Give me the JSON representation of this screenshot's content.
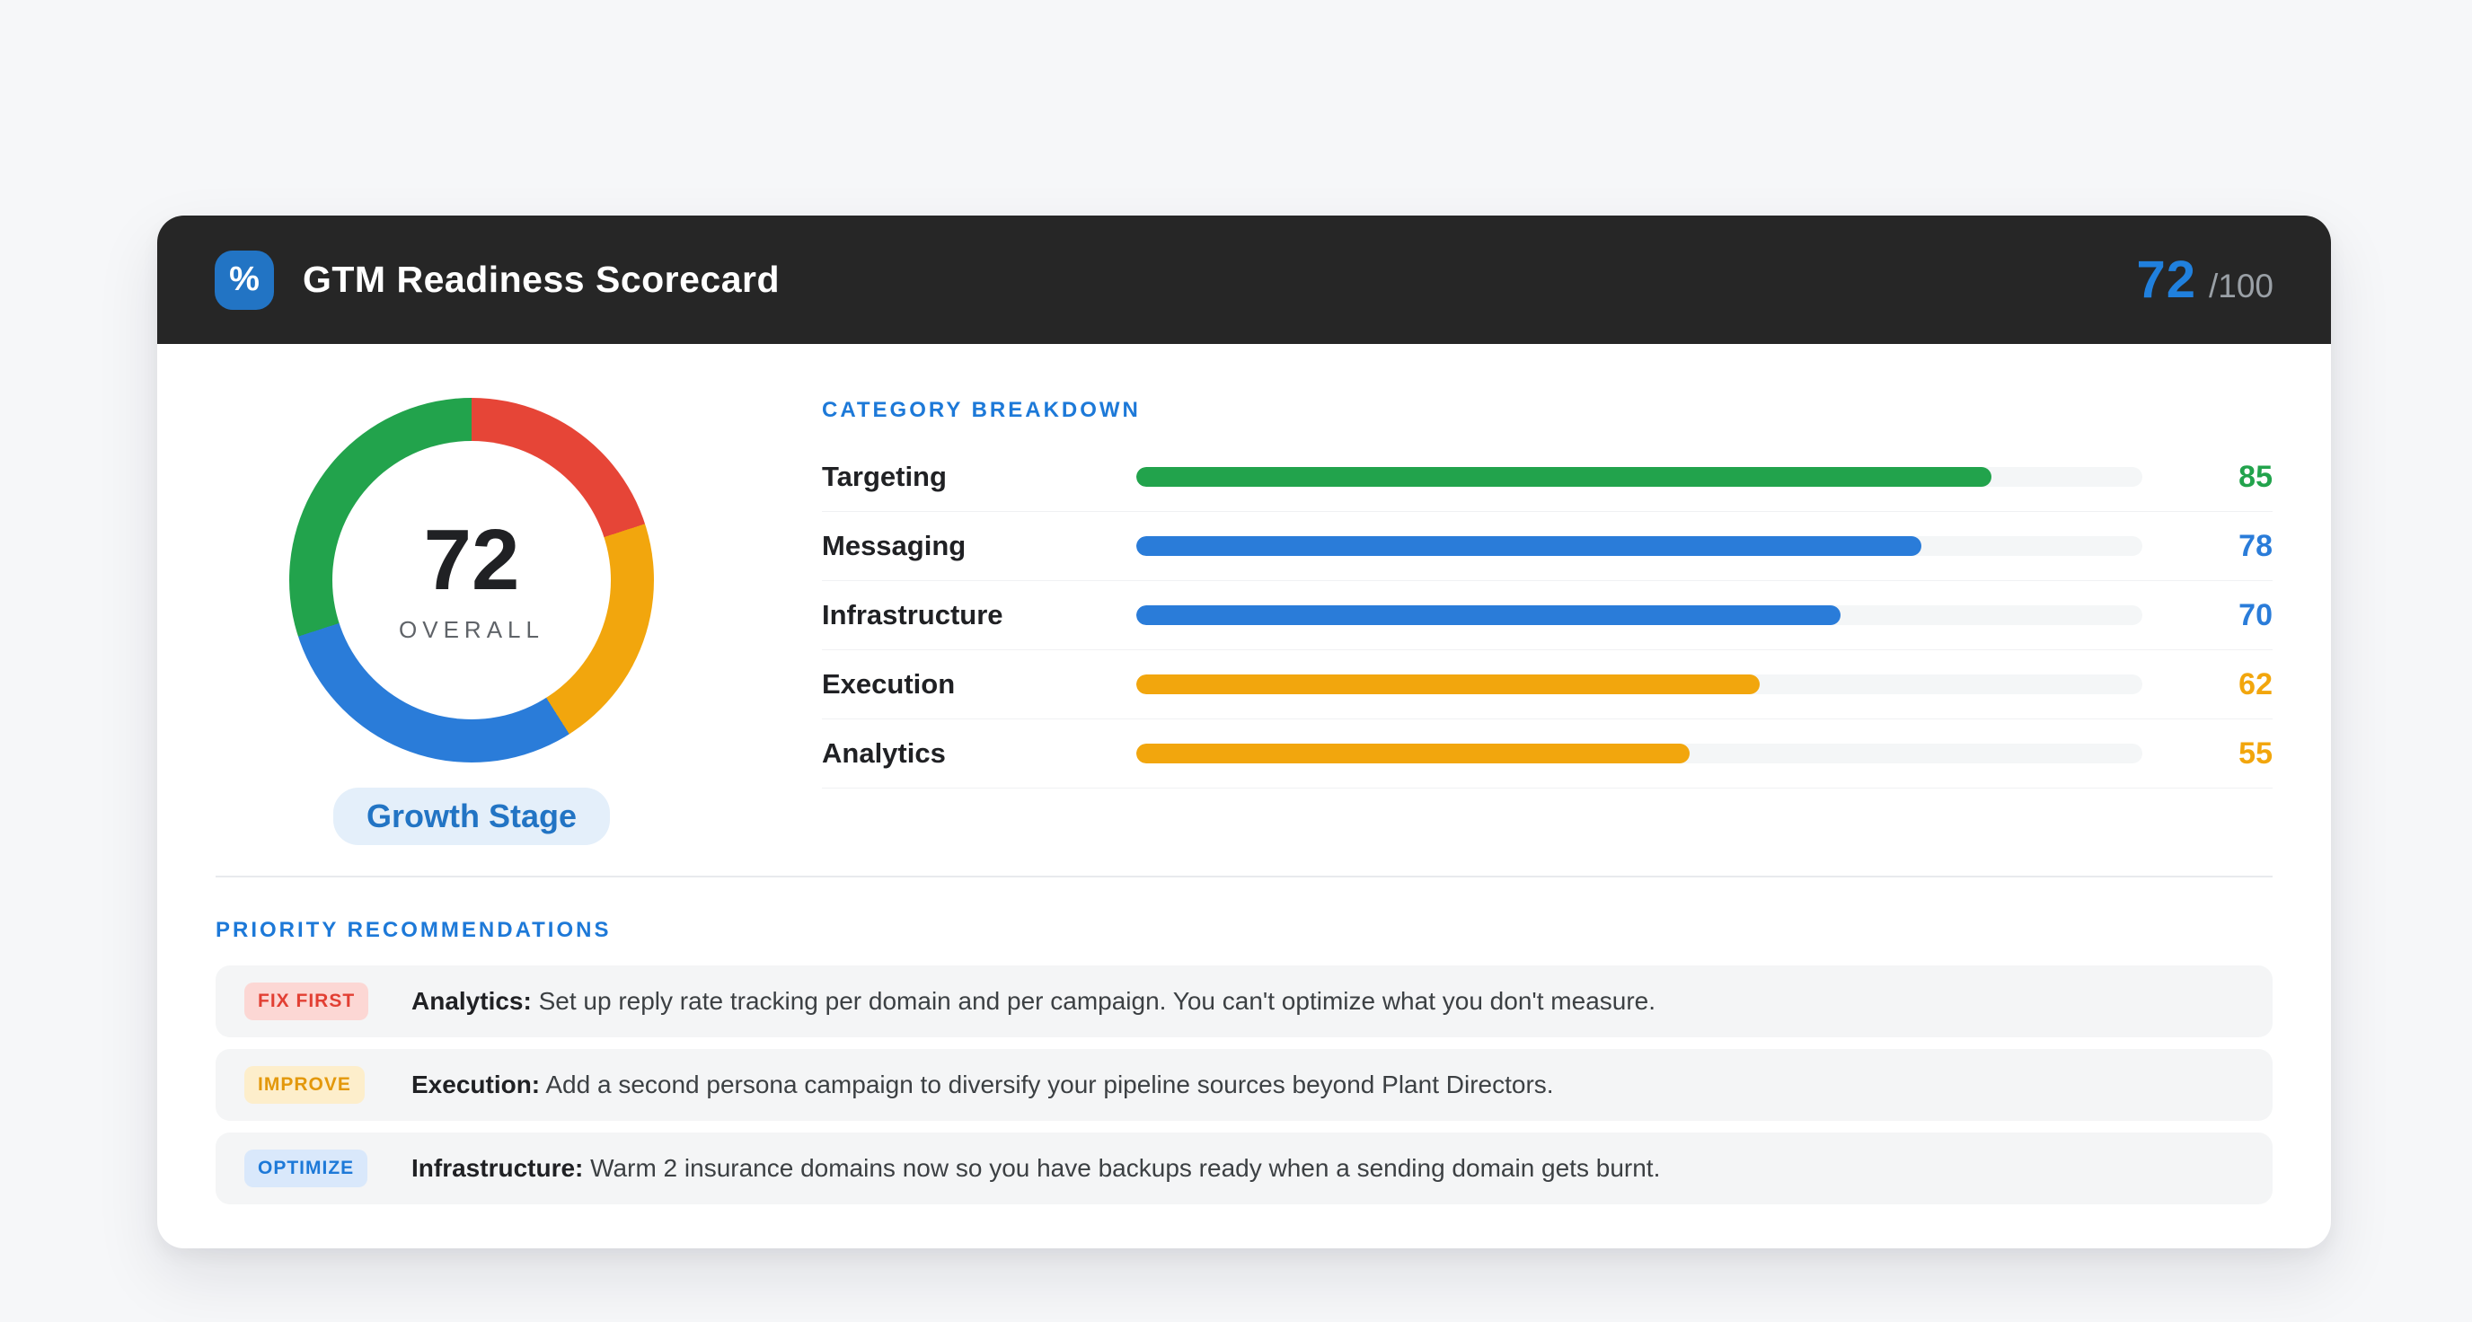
{
  "header": {
    "icon_glyph": "%",
    "title": "GTM Readiness Scorecard",
    "score": "72",
    "score_suffix": "/100",
    "score_color": "#2080dd"
  },
  "overall": {
    "score": "72",
    "label": "OVERALL",
    "stage": "Growth Stage"
  },
  "donut": {
    "segments": [
      {
        "name": "red",
        "color": "#e64537",
        "pct": 20
      },
      {
        "name": "orange",
        "color": "#f2a60d",
        "pct": 21
      },
      {
        "name": "blue",
        "color": "#2a7cd9",
        "pct": 29
      },
      {
        "name": "green",
        "color": "#22a34c",
        "pct": 30
      }
    ]
  },
  "categories": {
    "heading": "CATEGORY BREAKDOWN",
    "items": [
      {
        "label": "Targeting",
        "value": 85,
        "color": "#22a34c"
      },
      {
        "label": "Messaging",
        "value": 78,
        "color": "#2a7cd9"
      },
      {
        "label": "Infrastructure",
        "value": 70,
        "color": "#2a7cd9"
      },
      {
        "label": "Execution",
        "value": 62,
        "color": "#f2a60d"
      },
      {
        "label": "Analytics",
        "value": 55,
        "color": "#f2a60d"
      }
    ]
  },
  "recommendations": {
    "heading": "PRIORITY RECOMMENDATIONS",
    "items": [
      {
        "badge": "FIX FIRST",
        "badge_color": "#e23f33",
        "badge_bg": "#fcd7d4",
        "category": "Analytics:",
        "text": "Set up reply rate tracking per domain and per campaign. You can't optimize what you don't measure."
      },
      {
        "badge": "IMPROVE",
        "badge_color": "#e3980b",
        "badge_bg": "#fdeecb",
        "category": "Execution:",
        "text": "Add a second persona campaign to diversify your pipeline sources beyond Plant Directors."
      },
      {
        "badge": "OPTIMIZE",
        "badge_color": "#1d79d8",
        "badge_bg": "#d9e8fb",
        "category": "Infrastructure:",
        "text": "Warm 2 insurance domains now so you have backups ready when a sending domain gets burnt."
      }
    ]
  },
  "chart_data": [
    {
      "type": "pie",
      "title": "Overall score donut",
      "center_value": 72,
      "center_label": "OVERALL",
      "slices": [
        {
          "label": "red-segment",
          "value": 20
        },
        {
          "label": "orange-segment",
          "value": 21
        },
        {
          "label": "blue-segment",
          "value": 29
        },
        {
          "label": "green-segment",
          "value": 30
        }
      ]
    },
    {
      "type": "bar",
      "title": "Category Breakdown",
      "categories": [
        "Targeting",
        "Messaging",
        "Infrastructure",
        "Execution",
        "Analytics"
      ],
      "values": [
        85,
        78,
        70,
        62,
        55
      ],
      "xlim": [
        0,
        100
      ],
      "orientation": "horizontal"
    }
  ]
}
